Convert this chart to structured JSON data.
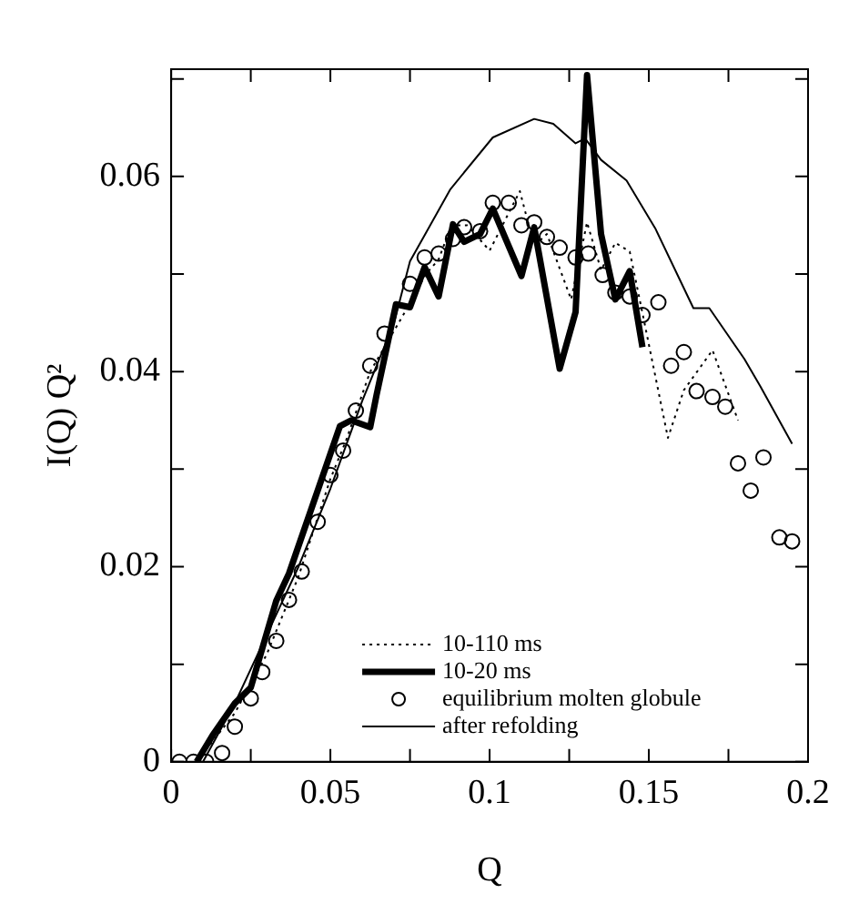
{
  "chart_data": {
    "type": "line",
    "xlabel": "Q",
    "ylabel": "I(Q) Q²",
    "xlim": [
      0,
      0.2
    ],
    "ylim": [
      0,
      0.071
    ],
    "xticks": [
      0,
      {
        "value": 0.025,
        "label": null
      },
      0.05,
      {
        "value": 0.075,
        "label": null
      },
      0.1,
      {
        "value": 0.125,
        "label": null
      },
      0.15,
      {
        "value": 0.175,
        "label": null
      },
      0.2
    ],
    "yticks": [
      0,
      {
        "value": 0.01,
        "label": null
      },
      0.02,
      {
        "value": 0.03,
        "label": null
      },
      0.04,
      {
        "value": 0.05,
        "label": null
      },
      0.06,
      {
        "value": 0.07,
        "label": null
      }
    ],
    "grid": false,
    "legend": "bottom",
    "series": [
      {
        "name": "10-110 ms",
        "color": "#000000",
        "line_style": "dotted",
        "marker": "none",
        "x": [
          0.008,
          0.02,
          0.03,
          0.04,
          0.05,
          0.055,
          0.0625,
          0.067,
          0.075,
          0.08,
          0.084,
          0.088,
          0.093,
          0.1,
          0.1095,
          0.114,
          0.118,
          0.1256,
          0.1306,
          0.135,
          0.1395,
          0.144,
          0.148,
          0.156,
          0.161,
          0.17,
          0.178
        ],
        "values": [
          0,
          0.005,
          0.011,
          0.019,
          0.029,
          0.033,
          0.04,
          0.0425,
          0.047,
          0.05,
          0.0515,
          0.055,
          0.055,
          0.0524,
          0.0585,
          0.0529,
          0.0541,
          0.0474,
          0.0553,
          0.0504,
          0.0532,
          0.0523,
          0.046,
          0.0332,
          0.0381,
          0.0422,
          0.035
        ]
      },
      {
        "name": "10-20 ms",
        "color": "#000000",
        "line_style": "solid",
        "marker": "none",
        "x": [
          0.008,
          0.013,
          0.02,
          0.025,
          0.033,
          0.037,
          0.053,
          0.0565,
          0.0625,
          0.0645,
          0.0706,
          0.075,
          0.0796,
          0.084,
          0.0885,
          0.092,
          0.097,
          0.101,
          0.11,
          0.114,
          0.122,
          0.127,
          0.1306,
          0.135,
          0.1395,
          0.144,
          0.148
        ],
        "values": [
          0,
          0.0027,
          0.006,
          0.0076,
          0.0165,
          0.0193,
          0.0344,
          0.035,
          0.0343,
          0.0376,
          0.0469,
          0.0466,
          0.0507,
          0.0477,
          0.0551,
          0.0533,
          0.0541,
          0.0567,
          0.0498,
          0.0548,
          0.0403,
          0.0461,
          0.0704,
          0.0541,
          0.0474,
          0.0503,
          0.0425
        ]
      },
      {
        "name": "equilibrium molten globule",
        "type": "scatter",
        "color": "#000000",
        "marker": "circle",
        "x": [
          0.0026,
          0.007,
          0.011,
          0.016,
          0.02,
          0.025,
          0.0286,
          0.033,
          0.037,
          0.041,
          0.046,
          0.05,
          0.054,
          0.058,
          0.0625,
          0.067,
          0.075,
          0.0796,
          0.084,
          0.0885,
          0.092,
          0.097,
          0.101,
          0.106,
          0.11,
          0.114,
          0.118,
          0.122,
          0.127,
          0.131,
          0.1355,
          0.1395,
          0.144,
          0.148,
          0.153,
          0.157,
          0.161,
          0.165,
          0.17,
          0.174,
          0.178,
          0.182,
          0.186,
          0.191,
          0.195
        ],
        "values": [
          0,
          0,
          0,
          0.0009,
          0.0036,
          0.0065,
          0.0092,
          0.0124,
          0.0166,
          0.0195,
          0.0246,
          0.0294,
          0.0319,
          0.036,
          0.0406,
          0.0439,
          0.049,
          0.0517,
          0.0521,
          0.0536,
          0.0548,
          0.0544,
          0.0573,
          0.0573,
          0.055,
          0.0553,
          0.0538,
          0.0527,
          0.0517,
          0.0521,
          0.0499,
          0.0481,
          0.0477,
          0.0458,
          0.0471,
          0.0406,
          0.042,
          0.038,
          0.0374,
          0.0364,
          0.0306,
          0.0278,
          0.0312,
          0.023,
          0.0226
        ]
      },
      {
        "name": "after refolding",
        "color": "#000000",
        "line_style": "solid",
        "marker": "none",
        "x": [
          0.01,
          0.02,
          0.04,
          0.05,
          0.06,
          0.07,
          0.075,
          0.0877,
          0.101,
          0.114,
          0.12,
          0.127,
          0.13,
          0.135,
          0.143,
          0.152,
          0.164,
          0.169,
          0.18,
          0.185,
          0.195
        ],
        "values": [
          0,
          0.006,
          0.02,
          0.028,
          0.037,
          0.045,
          0.0513,
          0.0587,
          0.064,
          0.0659,
          0.0654,
          0.0634,
          0.0639,
          0.0617,
          0.0596,
          0.0547,
          0.0465,
          0.0465,
          0.0413,
          0.0385,
          0.0326
        ]
      }
    ]
  }
}
